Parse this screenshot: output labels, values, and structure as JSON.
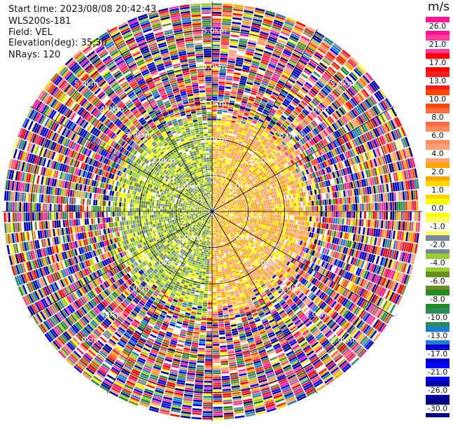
{
  "header": {
    "start_time": "Start time: 2023/08/08 20:42:43",
    "instrument": "WLS200s-181",
    "field": "Field: VEL",
    "elevation": "Elevation(deg): 35.30",
    "nrays": "NRays: 120"
  },
  "colorbar": {
    "unit": "m/s",
    "labels": [
      "26.0",
      "21.0",
      "17.0",
      "13.0",
      "10.0",
      "8.0",
      "6.0",
      "4.0",
      "2.0",
      "1.0",
      "0.0",
      "-1.0",
      "-2.0",
      "-4.0",
      "-6.0",
      "-8.0",
      "-10.0",
      "-13.0",
      "-17.0",
      "-21.0",
      "-26.0",
      "-30.0"
    ],
    "colors": [
      "#ff1493",
      "#ff3ba0",
      "#ff0000",
      "#ee2020",
      "#ff4500",
      "#ff6a40",
      "#ff8c5a",
      "#ffa07a",
      "#ffa500",
      "#ffd700",
      "#ffff00",
      "#ffff66",
      "#778899",
      "#9acd32",
      "#6b8e23",
      "#228b22",
      "#2e8b57",
      "#1e7fd0",
      "#0000cd",
      "#0000ff",
      "#0000a0",
      "#000080"
    ]
  },
  "chart_data": {
    "type": "heatmap",
    "projection": "polar PPI",
    "field": "VEL",
    "units": "m/s",
    "range_ring_labels": [
      "1.0km",
      "2.0km",
      "3.0km",
      "4.0km",
      "5.0km"
    ],
    "range_rings_km": [
      1.0,
      2.0,
      3.0,
      4.0,
      5.0
    ],
    "max_range_km": 5.8,
    "n_rays": 120,
    "value_range": [
      -30,
      30
    ],
    "pattern": {
      "east_sector_mean_ms": 3.0,
      "west_sector_mean_ms": -4.0,
      "clean_range_km": 2.4,
      "noisy_beyond_km": 3.1
    }
  }
}
